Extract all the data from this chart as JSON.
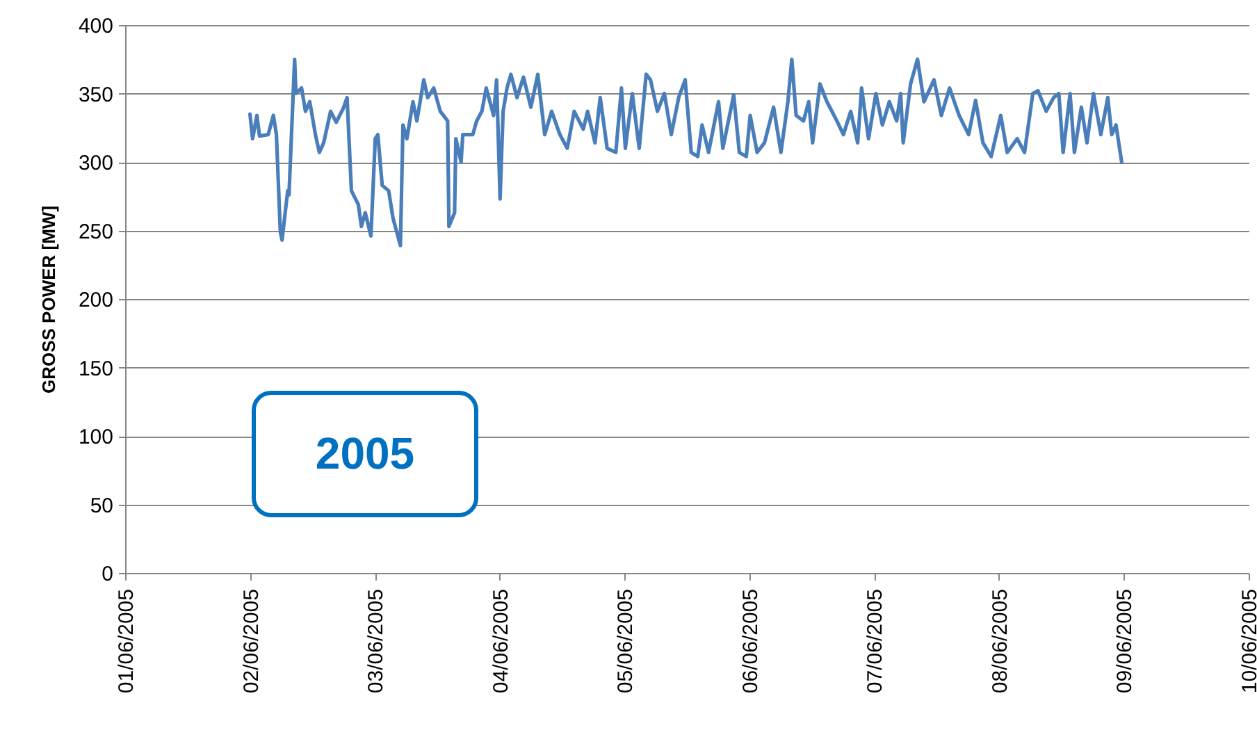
{
  "chart_data": {
    "type": "line",
    "ylabel": "GROSS POWER [MW]",
    "annotations": [
      "2005"
    ],
    "grid": "y",
    "marker": "none",
    "line_style": "solid",
    "ylim": [
      0,
      400
    ],
    "yticks": [
      0,
      50,
      100,
      150,
      200,
      250,
      300,
      350,
      400
    ],
    "xlim": [
      "2005-06-01",
      "2005-06-10"
    ],
    "xticks": [
      {
        "value": "2005-06-01",
        "label": "01/06/2005"
      },
      {
        "value": "2005-06-02",
        "label": "02/06/2005"
      },
      {
        "value": "2005-06-03",
        "label": "03/06/2005"
      },
      {
        "value": "2005-06-04",
        "label": "04/06/2005"
      },
      {
        "value": "2005-06-05",
        "label": "05/06/2005"
      },
      {
        "value": "2005-06-06",
        "label": "06/06/2005"
      },
      {
        "value": "2005-06-07",
        "label": "07/06/2005"
      },
      {
        "value": "2005-06-08",
        "label": "08/06/2005"
      },
      {
        "value": "2005-06-09",
        "label": "09/06/2005"
      },
      {
        "value": "2005-06-10",
        "label": "10/06/2005"
      }
    ],
    "series": [
      {
        "color": "#4a7ebb",
        "x": [
          "2005-06-02T00:00",
          "2005-06-02T00:30",
          "2005-06-02T01:20",
          "2005-06-02T01:50",
          "2005-06-02T03:30",
          "2005-06-02T04:30",
          "2005-06-02T05:05",
          "2005-06-02T05:50",
          "2005-06-02T06:10",
          "2005-06-02T07:15",
          "2005-06-02T07:30",
          "2005-06-02T08:35",
          "2005-06-02T08:50",
          "2005-06-02T09:55",
          "2005-06-02T10:40",
          "2005-06-02T11:30",
          "2005-06-02T12:35",
          "2005-06-02T13:20",
          "2005-06-02T14:10",
          "2005-06-02T15:30",
          "2005-06-02T16:35",
          "2005-06-02T17:55",
          "2005-06-02T18:40",
          "2005-06-02T19:30",
          "2005-06-02T20:50",
          "2005-06-02T21:25",
          "2005-06-02T22:10",
          "2005-06-02T23:15",
          "2005-06-03T00:05",
          "2005-06-03T00:35",
          "2005-06-03T01:25",
          "2005-06-03T02:40",
          "2005-06-03T03:30",
          "2005-06-03T04:55",
          "2005-06-03T05:25",
          "2005-06-03T06:10",
          "2005-06-03T07:20",
          "2005-06-03T08:05",
          "2005-06-03T09:25",
          "2005-06-03T10:10",
          "2005-06-03T11:20",
          "2005-06-03T12:35",
          "2005-06-03T14:00",
          "2005-06-03T14:15",
          "2005-06-03T15:20",
          "2005-06-03T15:35",
          "2005-06-03T16:35",
          "2005-06-03T16:55",
          "2005-06-03T18:50",
          "2005-06-03T19:35",
          "2005-06-03T20:35",
          "2005-06-03T21:25",
          "2005-06-03T22:50",
          "2005-06-03T23:25",
          "2005-06-04T00:05",
          "2005-06-04T00:40",
          "2005-06-04T01:25",
          "2005-06-04T02:10",
          "2005-06-04T03:20",
          "2005-06-04T04:35",
          "2005-06-04T06:00",
          "2005-06-04T07:20",
          "2005-06-04T08:40",
          "2005-06-04T10:00",
          "2005-06-04T11:35",
          "2005-06-04T13:00",
          "2005-06-04T14:20",
          "2005-06-04T16:05",
          "2005-06-04T16:55",
          "2005-06-04T18:20",
          "2005-06-04T19:20",
          "2005-06-04T20:40",
          "2005-06-04T22:20",
          "2005-06-04T23:25",
          "2005-06-05T00:10",
          "2005-06-05T01:30",
          "2005-06-05T02:50",
          "2005-06-05T04:10",
          "2005-06-05T05:00",
          "2005-06-05T06:20",
          "2005-06-05T07:40",
          "2005-06-05T09:00",
          "2005-06-05T10:25",
          "2005-06-05T11:40",
          "2005-06-05T12:50",
          "2005-06-05T14:05",
          "2005-06-05T14:55",
          "2005-06-05T16:10",
          "2005-06-05T18:05",
          "2005-06-05T18:55",
          "2005-06-05T21:00",
          "2005-06-05T22:05",
          "2005-06-05T23:25",
          "2005-06-06T00:10",
          "2005-06-06T01:30",
          "2005-06-06T02:55",
          "2005-06-06T04:40",
          "2005-06-06T06:05",
          "2005-06-06T07:25",
          "2005-06-06T08:10",
          "2005-06-06T09:00",
          "2005-06-06T10:25",
          "2005-06-06T11:25",
          "2005-06-06T12:10",
          "2005-06-06T13:35",
          "2005-06-06T14:55",
          "2005-06-06T16:50",
          "2005-06-06T18:05",
          "2005-06-06T19:30",
          "2005-06-06T20:50",
          "2005-06-06T21:35",
          "2005-06-06T22:55",
          "2005-06-07T00:20",
          "2005-06-07T01:35",
          "2005-06-07T02:55",
          "2005-06-07T04:20",
          "2005-06-07T05:05",
          "2005-06-07T05:35",
          "2005-06-07T07:00",
          "2005-06-07T08:20",
          "2005-06-07T09:35",
          "2005-06-07T11:30",
          "2005-06-07T12:55",
          "2005-06-07T14:30",
          "2005-06-07T16:20",
          "2005-06-07T18:10",
          "2005-06-07T19:30",
          "2005-06-07T20:55",
          "2005-06-07T22:30",
          "2005-06-08T00:20",
          "2005-06-08T01:35",
          "2005-06-08T03:30",
          "2005-06-08T04:55",
          "2005-06-08T06:30",
          "2005-06-08T07:30",
          "2005-06-08T09:05",
          "2005-06-08T10:30",
          "2005-06-08T11:30",
          "2005-06-08T12:20",
          "2005-06-08T13:40",
          "2005-06-08T14:30",
          "2005-06-08T15:50",
          "2005-06-08T16:55",
          "2005-06-08T18:10",
          "2005-06-08T19:35",
          "2005-06-08T20:55",
          "2005-06-08T21:40",
          "2005-06-08T22:30",
          "2005-06-08T23:35"
        ],
        "values": [
          335,
          317,
          334,
          319,
          320,
          334,
          320,
          249,
          243,
          279,
          276,
          375,
          350,
          354,
          337,
          344,
          320,
          307,
          314,
          337,
          329,
          339,
          347,
          279,
          269,
          253,
          263,
          246,
          317,
          320,
          283,
          279,
          259,
          239,
          327,
          317,
          344,
          330,
          360,
          347,
          354,
          337,
          330,
          253,
          263,
          317,
          300,
          320,
          320,
          330,
          337,
          354,
          334,
          360,
          273,
          337,
          354,
          364,
          347,
          362,
          340,
          364,
          320,
          337,
          320,
          310,
          337,
          324,
          337,
          314,
          347,
          310,
          307,
          354,
          310,
          350,
          310,
          364,
          360,
          337,
          350,
          320,
          347,
          360,
          307,
          304,
          327,
          307,
          344,
          310,
          349,
          307,
          304,
          334,
          307,
          314,
          340,
          307,
          344,
          375,
          334,
          330,
          344,
          314,
          357,
          344,
          330,
          320,
          337,
          314,
          354,
          317,
          350,
          327,
          344,
          330,
          350,
          314,
          357,
          375,
          344,
          360,
          334,
          354,
          334,
          320,
          345,
          314,
          304,
          334,
          307,
          317,
          307,
          350,
          352,
          337,
          347,
          350,
          307,
          350,
          307,
          340,
          314,
          350,
          320,
          347,
          320,
          327,
          300
        ]
      }
    ]
  }
}
